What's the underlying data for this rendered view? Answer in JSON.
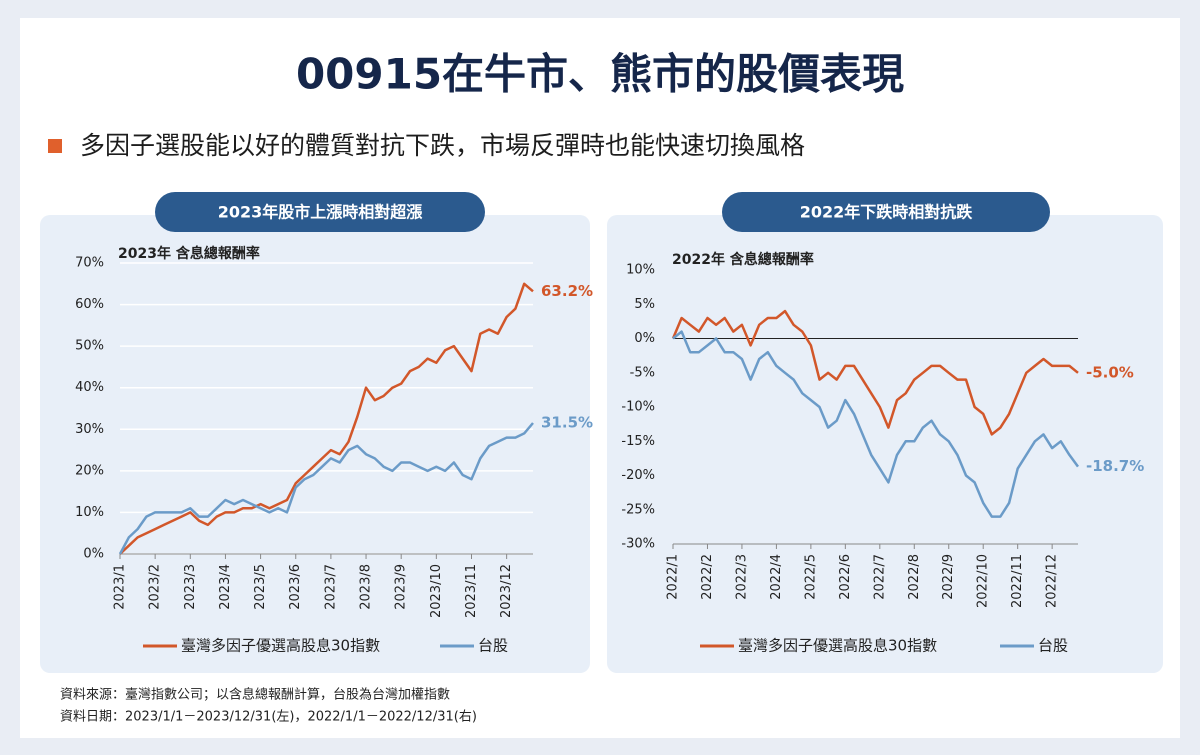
{
  "title": "00915在牛市、熊市的股價表現",
  "subtitle": "多因子選股能以好的體質對抗下跌，市場反彈時也能快速切換風格",
  "chart_data": [
    {
      "type": "line",
      "badge": "2023年股市上漲時相對超漲",
      "title": "2023年 含息總報酬率",
      "categories": [
        "2023/1",
        null,
        null,
        null,
        "2023/2",
        null,
        null,
        null,
        "2023/3",
        null,
        null,
        null,
        "2023/4",
        null,
        null,
        null,
        "2023/5",
        null,
        null,
        null,
        "2023/6",
        null,
        null,
        null,
        "2023/7",
        null,
        null,
        null,
        "2023/8",
        null,
        null,
        null,
        "2023/9",
        null,
        null,
        null,
        "2023/10",
        null,
        null,
        null,
        "2023/11",
        null,
        null,
        null,
        "2023/12",
        null,
        null,
        null
      ],
      "ylim": [
        0,
        70
      ],
      "yticks": [
        {
          "value": 0,
          "label": "0%"
        },
        {
          "value": 10,
          "label": "10%"
        },
        {
          "value": 20,
          "label": "20%"
        },
        {
          "value": 30,
          "label": "30%"
        },
        {
          "value": 40,
          "label": "40%"
        },
        {
          "value": 50,
          "label": "50%"
        },
        {
          "value": 60,
          "label": "60%"
        },
        {
          "value": 70,
          "label": "70%"
        }
      ],
      "grid": true,
      "zero_line": false,
      "series": [
        {
          "name": "臺灣多因子優選高股息30指數",
          "color": "#d2572a",
          "values": [
            0,
            2,
            4,
            5,
            6,
            7,
            8,
            9,
            10,
            8,
            7,
            9,
            10,
            10,
            11,
            11,
            12,
            11,
            12,
            13,
            17,
            19,
            21,
            23,
            25,
            24,
            27,
            33,
            40,
            37,
            38,
            40,
            41,
            44,
            45,
            47,
            46,
            49,
            50,
            47,
            44,
            53,
            54,
            53,
            57,
            59,
            65,
            63.2
          ],
          "value_labels": [
            null,
            null,
            null,
            null,
            null,
            null,
            null,
            null,
            null,
            null,
            null,
            null,
            null,
            null,
            null,
            null,
            null,
            null,
            null,
            null,
            null,
            null,
            null,
            null,
            null,
            null,
            null,
            null,
            null,
            null,
            null,
            null,
            null,
            null,
            null,
            null,
            null,
            null,
            null,
            null,
            null,
            null,
            null,
            null,
            null,
            null,
            null,
            "63.2%"
          ]
        },
        {
          "name": "台股",
          "color": "#6b9bc8",
          "values": [
            0,
            4,
            6,
            9,
            10,
            10,
            10,
            10,
            11,
            9,
            9,
            11,
            13,
            12,
            13,
            12,
            11,
            10,
            11,
            10,
            16,
            18,
            19,
            21,
            23,
            22,
            25,
            26,
            24,
            23,
            21,
            20,
            22,
            22,
            21,
            20,
            21,
            20,
            22,
            19,
            18,
            23,
            26,
            27,
            28,
            28,
            29,
            31.5
          ],
          "value_labels": [
            null,
            null,
            null,
            null,
            null,
            null,
            null,
            null,
            null,
            null,
            null,
            null,
            null,
            null,
            null,
            null,
            null,
            null,
            null,
            null,
            null,
            null,
            null,
            null,
            null,
            null,
            null,
            null,
            null,
            null,
            null,
            null,
            null,
            null,
            null,
            null,
            null,
            null,
            null,
            null,
            null,
            null,
            null,
            null,
            null,
            null,
            null,
            "31.5%"
          ]
        }
      ]
    },
    {
      "type": "line",
      "badge": "2022年下跌時相對抗跌",
      "title": "2022年 含息總報酬率",
      "categories": [
        "2022/1",
        null,
        null,
        null,
        "2022/2",
        null,
        null,
        null,
        "2022/3",
        null,
        null,
        null,
        "2022/4",
        null,
        null,
        null,
        "2022/5",
        null,
        null,
        null,
        "2022/6",
        null,
        null,
        null,
        "2022/7",
        null,
        null,
        null,
        "2022/8",
        null,
        null,
        null,
        "2022/9",
        null,
        null,
        null,
        "2022/10",
        null,
        null,
        null,
        "2022/11",
        null,
        null,
        null,
        "2022/12",
        null,
        null,
        null
      ],
      "ylim": [
        -30,
        10
      ],
      "yticks": [
        {
          "value": -30,
          "label": "-30%"
        },
        {
          "value": -25,
          "label": "-25%"
        },
        {
          "value": -20,
          "label": "-20%"
        },
        {
          "value": -15,
          "label": "-15%"
        },
        {
          "value": -10,
          "label": "-10%"
        },
        {
          "value": -5,
          "label": "-5%"
        },
        {
          "value": 0,
          "label": "0%"
        },
        {
          "value": 5,
          "label": "5%"
        },
        {
          "value": 10,
          "label": "10%"
        }
      ],
      "grid": false,
      "zero_line": true,
      "series": [
        {
          "name": "臺灣多因子優選高股息30指數",
          "color": "#d2572a",
          "values": [
            0,
            3,
            2,
            1,
            3,
            2,
            3,
            1,
            2,
            -1,
            2,
            3,
            3,
            4,
            2,
            1,
            -1,
            -6,
            -5,
            -6,
            -4,
            -4,
            -6,
            -8,
            -10,
            -13,
            -9,
            -8,
            -6,
            -5,
            -4,
            -4,
            -5,
            -6,
            -6,
            -10,
            -11,
            -14,
            -13,
            -11,
            -8,
            -5,
            -4,
            -3,
            -4,
            -4,
            -4,
            -5.0
          ],
          "value_labels": [
            null,
            null,
            null,
            null,
            null,
            null,
            null,
            null,
            null,
            null,
            null,
            null,
            null,
            null,
            null,
            null,
            null,
            null,
            null,
            null,
            null,
            null,
            null,
            null,
            null,
            null,
            null,
            null,
            null,
            null,
            null,
            null,
            null,
            null,
            null,
            null,
            null,
            null,
            null,
            null,
            null,
            null,
            null,
            null,
            null,
            null,
            null,
            "-5.0%"
          ]
        },
        {
          "name": "台股",
          "color": "#6b9bc8",
          "values": [
            0,
            1,
            -2,
            -2,
            -1,
            0,
            -2,
            -2,
            -3,
            -6,
            -3,
            -2,
            -4,
            -5,
            -6,
            -8,
            -9,
            -10,
            -13,
            -12,
            -9,
            -11,
            -14,
            -17,
            -19,
            -21,
            -17,
            -15,
            -15,
            -13,
            -12,
            -14,
            -15,
            -17,
            -20,
            -21,
            -24,
            -26,
            -26,
            -24,
            -19,
            -17,
            -15,
            -14,
            -16,
            -15,
            -17,
            -18.7
          ],
          "value_labels": [
            null,
            null,
            null,
            null,
            null,
            null,
            null,
            null,
            null,
            null,
            null,
            null,
            null,
            null,
            null,
            null,
            null,
            null,
            null,
            null,
            null,
            null,
            null,
            null,
            null,
            null,
            null,
            null,
            null,
            null,
            null,
            null,
            null,
            null,
            null,
            null,
            null,
            null,
            null,
            null,
            null,
            null,
            null,
            null,
            null,
            null,
            null,
            "-18.7%"
          ]
        }
      ]
    }
  ],
  "footer": {
    "source": "資料來源：臺灣指數公司；以含息總報酬計算，台股為台灣加權指數",
    "date": "資料日期：2023/1/1－2023/12/31(左)，2022/1/1－2022/12/31(右)"
  }
}
